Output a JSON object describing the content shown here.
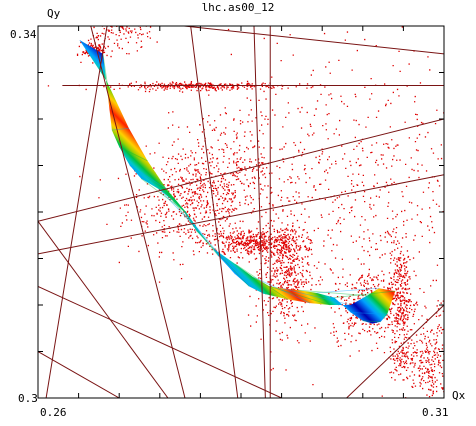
{
  "chart_data": {
    "type": "scatter",
    "title": "lhc.as00_12",
    "xlabel": "Qx",
    "ylabel": "Qy",
    "xlim": [
      0.26,
      0.31
    ],
    "ylim": [
      0.3,
      0.34
    ],
    "x_ticks": [
      0.26,
      0.31
    ],
    "y_ticks": [
      0.3,
      0.34
    ],
    "grid": false,
    "legend": "none",
    "colors": {
      "scatter": "#e00000",
      "resonance_lines": "#7a1414",
      "band": [
        "#0000b0",
        "#0050e0",
        "#00a0ff",
        "#00c8c8",
        "#00c040",
        "#a0d000",
        "#ffd000",
        "#ff8000",
        "#ff2000"
      ]
    },
    "resonance_lines": [
      {
        "x1": 0.261,
        "y1": 0.3,
        "x2": 0.2685,
        "y2": 0.34
      },
      {
        "x1": 0.2665,
        "y1": 0.34,
        "x2": 0.2781,
        "y2": 0.3
      },
      {
        "x1": 0.2788,
        "y1": 0.34,
        "x2": 0.2846,
        "y2": 0.3
      },
      {
        "x1": 0.2866,
        "y1": 0.34,
        "x2": 0.288,
        "y2": 0.3
      },
      {
        "x1": 0.2886,
        "y1": 0.34,
        "x2": 0.2886,
        "y2": 0.3
      },
      {
        "x1": 0.263,
        "y1": 0.3336,
        "x2": 0.31,
        "y2": 0.3336
      },
      {
        "x1": 0.278,
        "y1": 0.34,
        "x2": 0.31,
        "y2": 0.337
      },
      {
        "x1": 0.26,
        "y1": 0.319,
        "x2": 0.31,
        "y2": 0.33
      },
      {
        "x1": 0.26,
        "y1": 0.3155,
        "x2": 0.31,
        "y2": 0.324
      },
      {
        "x1": 0.26,
        "y1": 0.312,
        "x2": 0.29,
        "y2": 0.3
      },
      {
        "x1": 0.26,
        "y1": 0.305,
        "x2": 0.27,
        "y2": 0.3
      },
      {
        "x1": 0.26,
        "y1": 0.319,
        "x2": 0.276,
        "y2": 0.3
      },
      {
        "x1": 0.298,
        "y1": 0.3,
        "x2": 0.31,
        "y2": 0.31
      }
    ],
    "band_path": [
      [
        0.2651,
        0.3385
      ],
      [
        0.268,
        0.337
      ],
      [
        0.2691,
        0.3288
      ],
      [
        0.27,
        0.327
      ],
      [
        0.2713,
        0.325
      ],
      [
        0.2727,
        0.3236
      ],
      [
        0.275,
        0.3224
      ],
      [
        0.2766,
        0.3212
      ],
      [
        0.278,
        0.32
      ],
      [
        0.2795,
        0.318
      ],
      [
        0.2817,
        0.316
      ],
      [
        0.2843,
        0.3144
      ],
      [
        0.2865,
        0.313
      ],
      [
        0.2885,
        0.312
      ],
      [
        0.29,
        0.3118
      ],
      [
        0.292,
        0.3116
      ],
      [
        0.2943,
        0.3113
      ],
      [
        0.2965,
        0.3108
      ],
      [
        0.2985,
        0.3092
      ],
      [
        0.3,
        0.3083
      ],
      [
        0.3012,
        0.308
      ],
      [
        0.3022,
        0.3082
      ],
      [
        0.303,
        0.309
      ],
      [
        0.304,
        0.3115
      ],
      [
        0.302,
        0.3118
      ],
      [
        0.3005,
        0.311
      ],
      [
        0.2985,
        0.31
      ],
      [
        0.296,
        0.31
      ],
      [
        0.2935,
        0.3102
      ],
      [
        0.2908,
        0.3106
      ],
      [
        0.2878,
        0.3112
      ],
      [
        0.286,
        0.312
      ],
      [
        0.2843,
        0.3133
      ],
      [
        0.2822,
        0.3153
      ],
      [
        0.28,
        0.3178
      ],
      [
        0.2782,
        0.32
      ],
      [
        0.2758,
        0.3225
      ],
      [
        0.2735,
        0.3255
      ],
      [
        0.2712,
        0.329
      ],
      [
        0.2685,
        0.334
      ],
      [
        0.2651,
        0.3385
      ]
    ],
    "scatter_clusters": [
      {
        "x": 0.279,
        "y": 0.321,
        "sx": 0.004,
        "sy": 0.0025,
        "n": 500
      },
      {
        "x": 0.2865,
        "y": 0.3167,
        "sx": 0.003,
        "sy": 0.0007,
        "n": 450
      },
      {
        "x": 0.28,
        "y": 0.3336,
        "sx": 0.005,
        "sy": 0.0002,
        "n": 300
      },
      {
        "x": 0.2905,
        "y": 0.3135,
        "sx": 0.0014,
        "sy": 0.003,
        "n": 450
      },
      {
        "x": 0.301,
        "y": 0.31,
        "sx": 0.0025,
        "sy": 0.0018,
        "n": 400
      },
      {
        "x": 0.3045,
        "y": 0.3115,
        "sx": 0.0007,
        "sy": 0.003,
        "n": 250
      },
      {
        "x": 0.2995,
        "y": 0.322,
        "sx": 0.008,
        "sy": 0.008,
        "n": 650
      },
      {
        "x": 0.283,
        "y": 0.325,
        "sx": 0.004,
        "sy": 0.003,
        "n": 300
      },
      {
        "x": 0.267,
        "y": 0.3375,
        "sx": 0.0008,
        "sy": 0.0005,
        "n": 120
      },
      {
        "x": 0.27,
        "y": 0.3395,
        "sx": 0.002,
        "sy": 0.001,
        "n": 120
      },
      {
        "x": 0.3085,
        "y": 0.3035,
        "sx": 0.0012,
        "sy": 0.002,
        "n": 200
      },
      {
        "x": 0.311,
        "y": 0.308,
        "sx": 0.0015,
        "sy": 0.002,
        "n": 80
      },
      {
        "x": 0.305,
        "y": 0.3045,
        "sx": 0.001,
        "sy": 0.0015,
        "n": 120
      }
    ]
  }
}
